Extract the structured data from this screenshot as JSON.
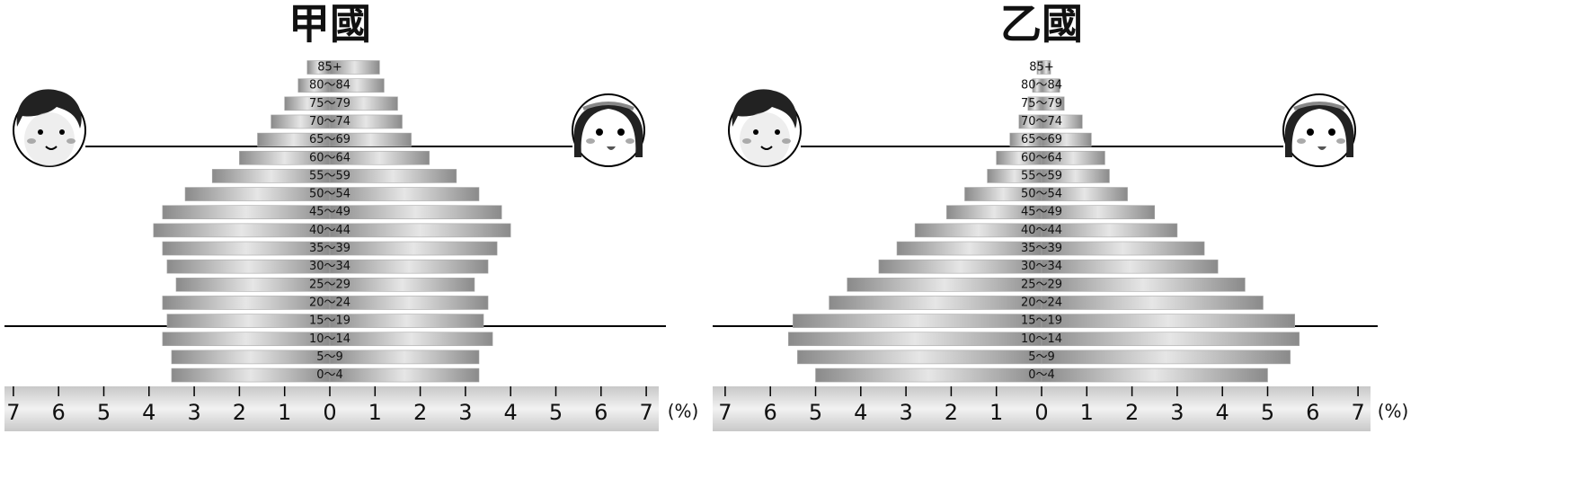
{
  "chart_data": [
    {
      "type": "pyramid",
      "title": "甲國",
      "categories": [
        "85+",
        "80〜84",
        "75〜79",
        "70〜74",
        "65〜69",
        "60〜64",
        "55〜59",
        "50〜54",
        "45〜49",
        "40〜44",
        "35〜39",
        "30〜34",
        "25〜29",
        "20〜24",
        "15〜19",
        "10〜14",
        "5〜9",
        "0〜4"
      ],
      "series": [
        {
          "color": "#a8a8a8",
          "values": [
            0.5,
            0.7,
            1.0,
            1.3,
            1.6,
            2.0,
            2.6,
            3.2,
            3.7,
            3.9,
            3.7,
            3.6,
            3.4,
            3.7,
            3.6,
            3.7,
            3.5,
            3.5
          ]
        },
        {
          "color": "#a8a8a8",
          "values": [
            1.1,
            1.2,
            1.5,
            1.6,
            1.8,
            2.2,
            2.8,
            3.3,
            3.8,
            4.0,
            3.7,
            3.5,
            3.2,
            3.5,
            3.4,
            3.6,
            3.3,
            3.3
          ]
        }
      ],
      "xlim": [
        -7,
        7
      ],
      "xticks": [
        {
          "value": -7,
          "label": "7"
        },
        {
          "value": -6,
          "label": "6"
        },
        {
          "value": -5,
          "label": "5"
        },
        {
          "value": -4,
          "label": "4"
        },
        {
          "value": -3,
          "label": "3"
        },
        {
          "value": -2,
          "label": "2"
        },
        {
          "value": -1,
          "label": "1"
        },
        0,
        1,
        2,
        3,
        4,
        5,
        6,
        7
      ],
      "unit_label": "(%)"
    },
    {
      "type": "pyramid",
      "title": "乙國",
      "categories": [
        "85+",
        "80〜84",
        "75〜79",
        "70〜74",
        "65〜69",
        "60〜64",
        "55〜59",
        "50〜54",
        "45〜49",
        "40〜44",
        "35〜39",
        "30〜34",
        "25〜29",
        "20〜24",
        "15〜19",
        "10〜14",
        "5〜9",
        "0〜4"
      ],
      "series": [
        {
          "color": "#a8a8a8",
          "values": [
            0.1,
            0.2,
            0.3,
            0.5,
            0.7,
            1.0,
            1.2,
            1.7,
            2.1,
            2.8,
            3.2,
            3.6,
            4.3,
            4.7,
            5.5,
            5.6,
            5.4,
            5.0
          ]
        },
        {
          "color": "#a8a8a8",
          "values": [
            0.2,
            0.4,
            0.5,
            0.9,
            1.1,
            1.4,
            1.5,
            1.9,
            2.5,
            3.0,
            3.6,
            3.9,
            4.5,
            4.9,
            5.6,
            5.7,
            5.5,
            5.0
          ]
        }
      ],
      "xlim": [
        -7,
        7
      ],
      "xticks": [
        {
          "value": -7,
          "label": "7"
        },
        {
          "value": -6,
          "label": "6"
        },
        {
          "value": -5,
          "label": "5"
        },
        {
          "value": -4,
          "label": "4"
        },
        {
          "value": -3,
          "label": "3"
        },
        {
          "value": -2,
          "label": "2"
        },
        {
          "value": -1,
          "label": "1"
        },
        0,
        1,
        2,
        3,
        4,
        5,
        6,
        7
      ],
      "unit_label": "(%)"
    }
  ]
}
